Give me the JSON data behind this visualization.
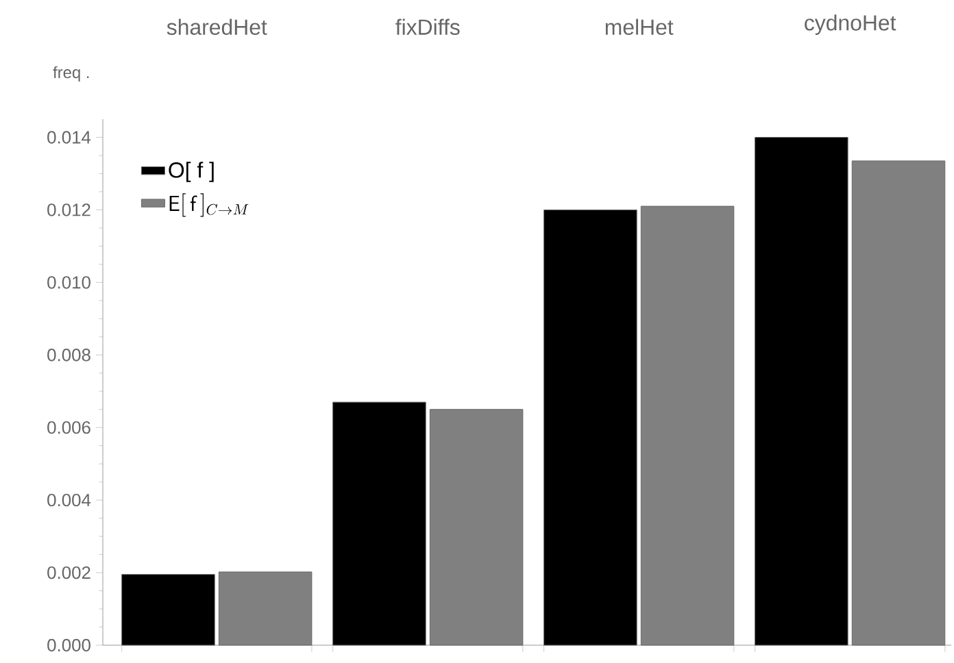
{
  "chart_data": {
    "type": "bar",
    "categories": [
      "sharedHet",
      "fixDiffs",
      "melHet",
      "cydnoHet"
    ],
    "ylabel": "freq .",
    "series": [
      {
        "name": "O[ f ]",
        "color": "#000000",
        "values": [
          0.00195,
          0.0067,
          0.012,
          0.014
        ]
      },
      {
        "name": "\\mathsf{E}[\\,\\mathsf{f}\\,]_{C \\to M}",
        "color": "#808080",
        "values": [
          0.00202,
          0.0065,
          0.0121,
          0.01335
        ]
      }
    ],
    "ylim": [
      0,
      0.0145
    ],
    "yticks": [
      {
        "value": 0,
        "label": "0.000"
      },
      {
        "value": 0.002,
        "label": "0.002"
      },
      {
        "value": 0.004,
        "label": "0.004"
      },
      {
        "value": 0.006,
        "label": "0.006"
      },
      {
        "value": 0.008,
        "label": "0.008"
      },
      {
        "value": 0.01,
        "label": "0.010"
      },
      {
        "value": 0.012,
        "label": "0.012"
      },
      {
        "value": 0.014,
        "label": "0.014"
      }
    ],
    "legend": "top left",
    "grid": false
  }
}
